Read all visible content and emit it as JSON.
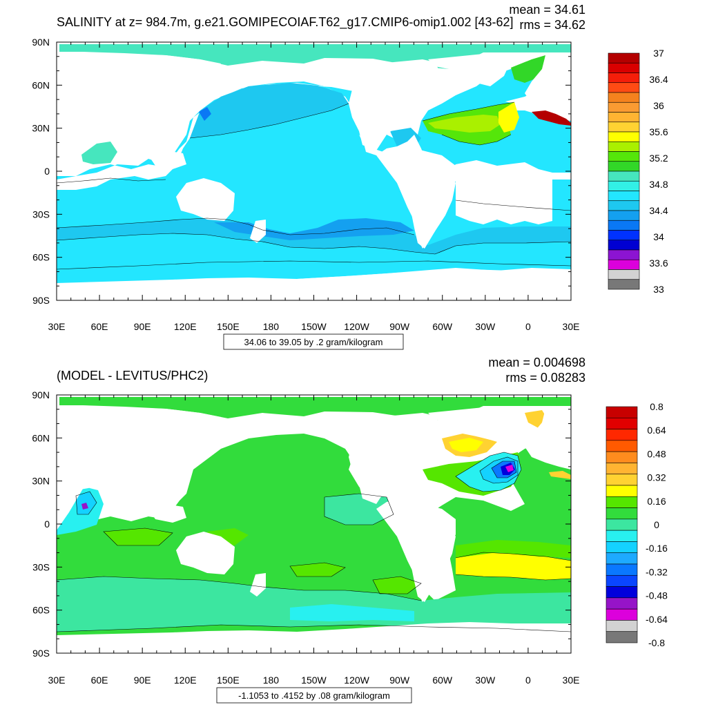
{
  "figure": {
    "panels": [
      {
        "title": "SALINITY at z= 984.7m, g.e21.GOMIPECOIAF.T62_g17.CMIP6-omip1.002 [43-62]",
        "stats": {
          "mean": "mean = 34.61",
          "rms": "rms = 34.62"
        },
        "contour_info": "34.06 to 39.05 by .2 gram/kilogram",
        "colorbar": {
          "labels": [
            "37",
            "36.4",
            "36",
            "35.6",
            "35.2",
            "34.8",
            "34.4",
            "34",
            "33.6",
            "33"
          ],
          "colors": [
            "#b40000",
            "#d90000",
            "#f51e0a",
            "#ff4b14",
            "#f5821e",
            "#fa9b32",
            "#ffb432",
            "#ffd232",
            "#ffff00",
            "#aaf000",
            "#55e60a",
            "#32d728",
            "#46e6be",
            "#32f0e6",
            "#23e6ff",
            "#1ec8f0",
            "#14a0f0",
            "#0a78f5",
            "#0032ff",
            "#0000d2",
            "#8c14d2",
            "#dc00dc",
            "#d2d2d2",
            "#787878"
          ]
        }
      },
      {
        "title": "(MODEL - LEVITUS/PHC2)",
        "stats": {
          "mean": "mean = 0.004698",
          "rms": "rms = 0.08283"
        },
        "contour_info": "-1.1053 to .4152 by .08 gram/kilogram",
        "colorbar": {
          "labels": [
            "0.8",
            "0.64",
            "0.48",
            "0.32",
            "0.16",
            "0",
            "-0.16",
            "-0.32",
            "-0.48",
            "-0.64",
            "-0.8"
          ],
          "colors": [
            "#c80000",
            "#e10000",
            "#ff2800",
            "#ff5a00",
            "#ff8c1e",
            "#ffb432",
            "#ffd232",
            "#ffff00",
            "#55e600",
            "#32dc3c",
            "#3ce6a0",
            "#28f0f0",
            "#14d2ff",
            "#1eaaff",
            "#0a78ff",
            "#0a46ff",
            "#0000dc",
            "#9614c8",
            "#dc00dc",
            "#d2d2d2",
            "#787878"
          ]
        }
      }
    ],
    "axes": {
      "lat_labels": [
        "90N",
        "60N",
        "30N",
        "0",
        "30S",
        "60S",
        "90S"
      ],
      "lon_labels": [
        "30E",
        "60E",
        "90E",
        "120E",
        "150E",
        "180",
        "150W",
        "120W",
        "90W",
        "60W",
        "30W",
        "0",
        "30E"
      ]
    }
  }
}
